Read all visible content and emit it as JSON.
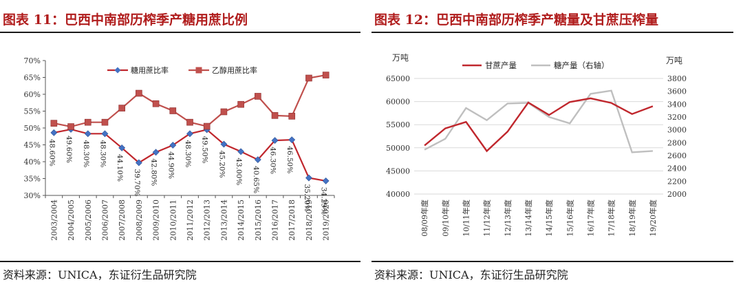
{
  "left": {
    "title": "图表 11：巴西中南部历榨季产糖用蔗比例",
    "source": "资料来源：UNICA，东证衍生品研究院"
  },
  "right": {
    "title": "图表 12：巴西中南部历榨季产糖量及甘蔗压榨量",
    "source": "资料来源：UNICA，东证衍生品研究院"
  },
  "chart_data": [
    {
      "type": "line",
      "title": "",
      "categories": [
        "2003/2004",
        "2004/2005",
        "2005/2006",
        "2006/2007",
        "2007/2008",
        "2008/2009",
        "2009/2010",
        "2010/2011",
        "2011/2012",
        "2012/2013",
        "2013/2014",
        "2014/2015",
        "2015/2016",
        "2016/2017",
        "2017/2018",
        "2018/2019",
        "2019/2020"
      ],
      "ylim": [
        30,
        70
      ],
      "yticks": [
        "30%",
        "35%",
        "40%",
        "45%",
        "50%",
        "55%",
        "60%",
        "65%",
        "70%"
      ],
      "legend_position": "top",
      "series": [
        {
          "name": "糖用蔗比率",
          "color": "#4472c4",
          "line_color": "#c0272d",
          "marker": "diamond",
          "values": [
            48.6,
            49.6,
            48.3,
            48.3,
            44.1,
            39.7,
            42.8,
            44.9,
            48.3,
            49.5,
            45.2,
            43.0,
            40.6,
            46.3,
            46.5,
            35.2,
            34.3
          ],
          "labels": [
            "48.60%",
            "49.60%",
            "48.30%",
            "48.30%",
            "44.10%",
            "39.70%",
            "42.80%",
            "44.90%",
            "48.30%",
            "49.50%",
            "45.20%",
            "43.00%",
            "40.65%",
            "46.30%",
            "46.50%",
            "35.20%",
            "34.29%"
          ]
        },
        {
          "name": "乙醇用蔗比率",
          "color": "#c0504d",
          "line_color": "#c0504d",
          "marker": "square",
          "values": [
            51.4,
            50.4,
            51.7,
            51.7,
            55.9,
            60.3,
            57.2,
            55.1,
            51.7,
            50.5,
            54.8,
            57.0,
            59.4,
            53.7,
            53.5,
            64.8,
            65.7
          ]
        }
      ]
    },
    {
      "type": "line",
      "title": "",
      "categories": [
        "08/09年度",
        "09/10年度",
        "10/11年度",
        "11/12年度",
        "12/13年度",
        "13/14年度",
        "14/15年度",
        "15/16年度",
        "16/17年度",
        "17/18年度",
        "18/19年度",
        "19/20年度"
      ],
      "y_left_label": "万吨",
      "y_right_label": "万吨",
      "ylim_left": [
        40000,
        65000
      ],
      "yticks_left": [
        40000,
        45000,
        50000,
        55000,
        60000,
        65000
      ],
      "ylim_right": [
        2000,
        3800
      ],
      "yticks_right": [
        2000,
        2200,
        2400,
        2600,
        2800,
        3000,
        3200,
        3400,
        3600,
        3800
      ],
      "legend_position": "top",
      "grid": true,
      "series": [
        {
          "name": "甘蔗产量",
          "axis": "left",
          "color": "#c0272d",
          "values": [
            50500,
            54200,
            55600,
            49300,
            53500,
            59800,
            57100,
            59900,
            60700,
            59700,
            57300,
            59000
          ]
        },
        {
          "name": "糖产量（右轴）",
          "axis": "right",
          "color": "#bfbfbf",
          "values": [
            2690,
            2860,
            3340,
            3150,
            3410,
            3420,
            3200,
            3100,
            3560,
            3610,
            2650,
            2670
          ]
        }
      ]
    }
  ]
}
